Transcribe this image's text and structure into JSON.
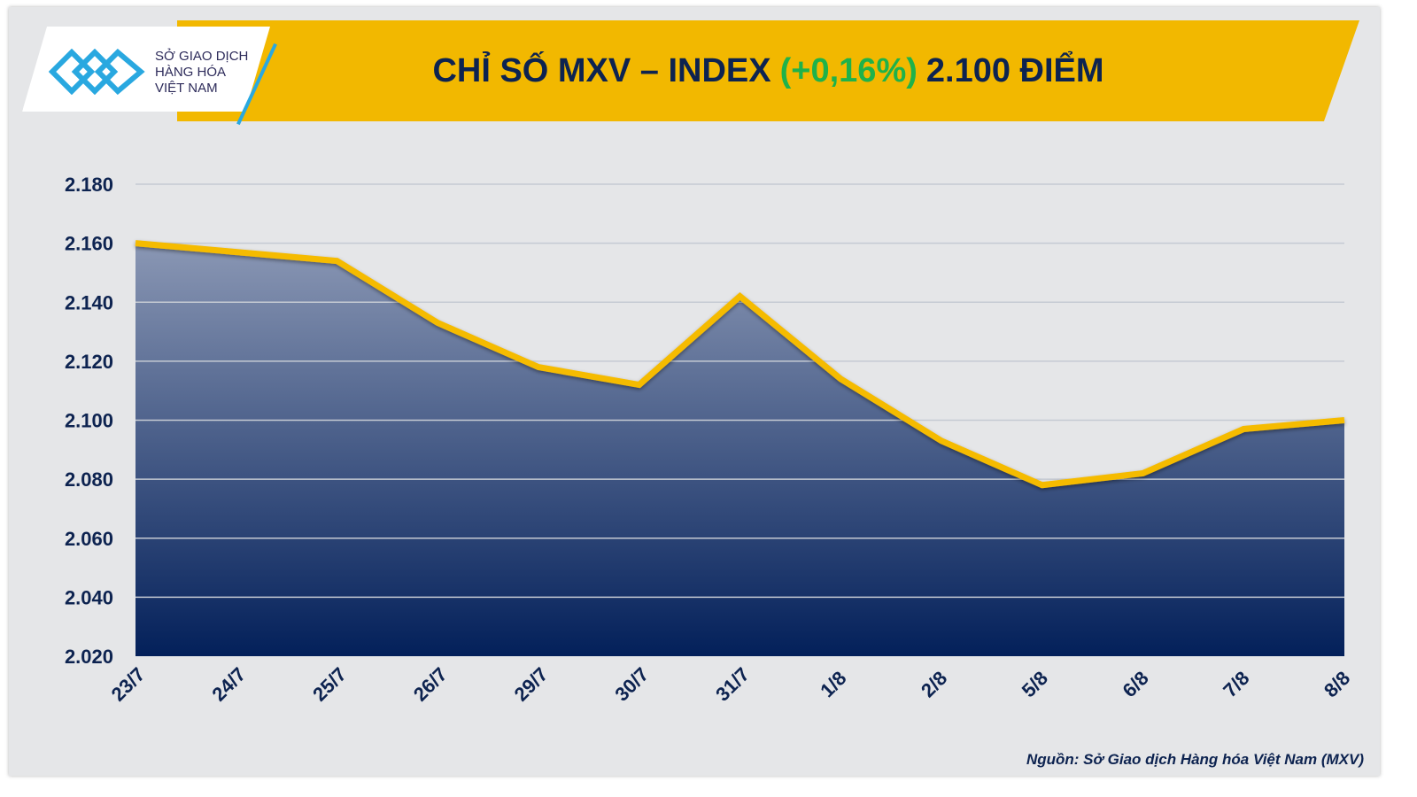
{
  "header": {
    "logo_text": [
      "SỞ GIAO DỊCH",
      "HÀNG HÓA",
      "VIỆT NAM"
    ],
    "title_prefix": "CHỈ SỐ MXV – INDEX",
    "title_change": "(+0,16%)",
    "title_suffix": "2.100 ĐIỂM"
  },
  "footer": {
    "source": "Nguồn: Sở Giao dịch Hàng hóa Việt Nam (MXV)"
  },
  "colors": {
    "line": "#f5bb00",
    "area_top": "#8a97b4",
    "area_bottom": "#03205a",
    "text": "#0d2350",
    "positive": "#1fb24a"
  },
  "chart_data": {
    "type": "area",
    "title": "CHỈ SỐ MXV – INDEX (+0,16%) 2.100 ĐIỂM",
    "categories": [
      "23/7",
      "24/7",
      "25/7",
      "26/7",
      "29/7",
      "30/7",
      "31/7",
      "1/8",
      "2/8",
      "5/8",
      "6/8",
      "7/8",
      "8/8"
    ],
    "values": [
      2160,
      2157,
      2154,
      2133,
      2118,
      2112,
      2142,
      2114,
      2093,
      2078,
      2082,
      2097,
      2100
    ],
    "ylim": [
      2020,
      2180
    ],
    "yticks": [
      "2.020",
      "2.040",
      "2.060",
      "2.080",
      "2.100",
      "2.120",
      "2.140",
      "2.160",
      "2.180"
    ],
    "ytick_values": [
      2020,
      2040,
      2060,
      2080,
      2100,
      2120,
      2140,
      2160,
      2180
    ],
    "grid": true,
    "xlabel": "",
    "ylabel": ""
  }
}
